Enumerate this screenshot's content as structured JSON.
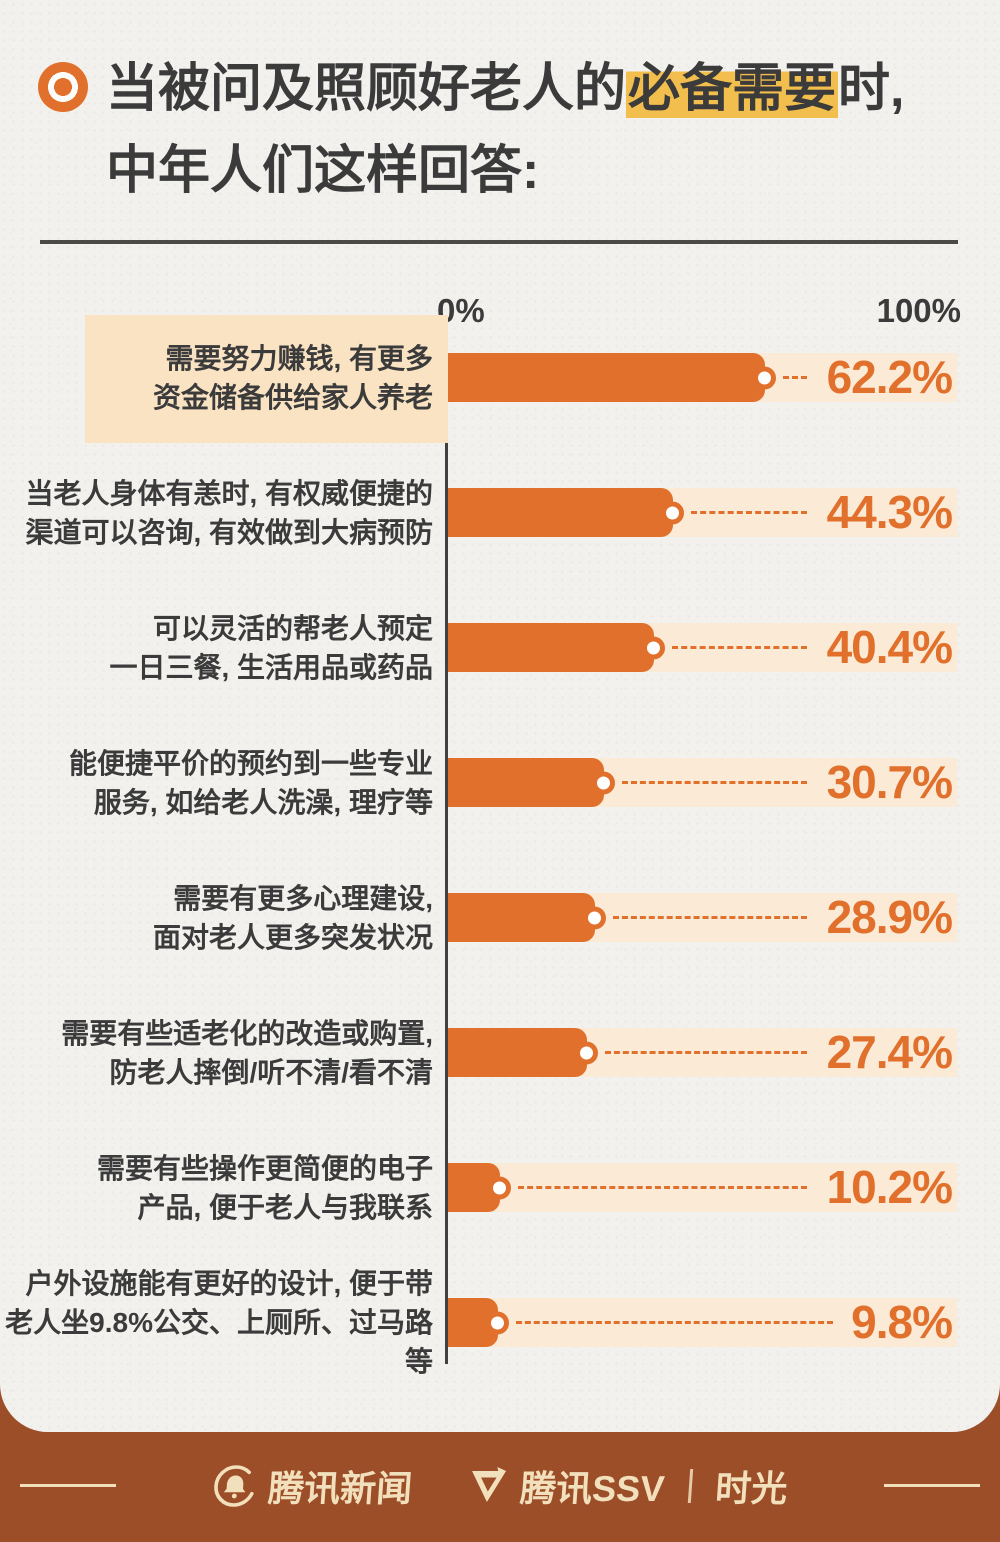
{
  "page": {
    "background_color": "#9C4E28",
    "card_color": "#F2F1EE"
  },
  "header": {
    "bullet_icon": "bullseye-icon",
    "title_line1_before": "当被问及照顾好老人的",
    "title_line1_highlight": "必备需要",
    "title_line1_after": "时,",
    "title_line2": "中年人们这样回答:",
    "highlight_color": "#F2BE4D",
    "text_color": "#3B3B3B"
  },
  "chart_data": {
    "type": "bar",
    "orientation": "horizontal",
    "xlim": [
      0,
      100
    ],
    "grid": false,
    "legend": false,
    "axis_labels": {
      "min": "0%",
      "max": "100%"
    },
    "bar_color": "#E1702C",
    "track_color": "#FAEAD6",
    "value_color": "#E1702C",
    "categories": [
      "需要努力赚钱, 有更多资金储备供给家人养老",
      "当老人身体有恙时, 有权威便捷的渠道可以咨询, 有效做到大病预防",
      "可以灵活的帮老人预定一日三餐, 生活用品或药品",
      "能便捷平价的预约到一些专业服务, 如给老人洗澡, 理疗等",
      "需要有更多心理建设, 面对老人更多突发状况",
      "需要有些适老化的改造或购置, 防老人摔倒/听不清/看不清",
      "需要有些操作更简便的电子产品, 便于老人与我联系",
      "户外设施能有更好的设计, 便于带老人坐9.8%公交、上厕所、过马路等"
    ],
    "values": [
      62.2,
      44.3,
      40.4,
      30.7,
      28.9,
      27.4,
      10.2,
      9.8
    ],
    "rows": [
      {
        "label_line1": "需要努力赚钱, 有更多",
        "label_line2": "资金储备供给家人养老",
        "value": 62.2,
        "value_label": "62.2%",
        "highlighted": true
      },
      {
        "label_line1": "当老人身体有恙时, 有权威便捷的",
        "label_line2": "渠道可以咨询, 有效做到大病预防",
        "value": 44.3,
        "value_label": "44.3%",
        "highlighted": false
      },
      {
        "label_line1": "可以灵活的帮老人预定",
        "label_line2": "一日三餐, 生活用品或药品",
        "value": 40.4,
        "value_label": "40.4%",
        "highlighted": false
      },
      {
        "label_line1": "能便捷平价的预约到一些专业",
        "label_line2": "服务, 如给老人洗澡, 理疗等",
        "value": 30.7,
        "value_label": "30.7%",
        "highlighted": false
      },
      {
        "label_line1": "需要有更多心理建设,",
        "label_line2": "面对老人更多突发状况",
        "value": 28.9,
        "value_label": "28.9%",
        "highlighted": false
      },
      {
        "label_line1": "需要有些适老化的改造或购置,",
        "label_line2": "防老人摔倒/听不清/看不清",
        "value": 27.4,
        "value_label": "27.4%",
        "highlighted": false
      },
      {
        "label_line1": "需要有些操作更简便的电子",
        "label_line2": "产品, 便于老人与我联系",
        "value": 10.2,
        "value_label": "10.2%",
        "highlighted": false
      },
      {
        "label_line1": "户外设施能有更好的设计, 便于带",
        "label_line2": "老人坐9.8%公交、上厕所、过马路等",
        "value": 9.8,
        "value_label": "9.8%",
        "highlighted": false
      }
    ]
  },
  "footer": {
    "background_color": "#9C4E28",
    "text_color": "#F2E0BD",
    "logos": [
      {
        "icon": "bell-circle-icon",
        "label": "腾讯新闻"
      },
      {
        "icon": "ssv-triangle-icon",
        "label": "腾讯SSV"
      }
    ],
    "separator": "|",
    "brand_suffix": "时光"
  }
}
